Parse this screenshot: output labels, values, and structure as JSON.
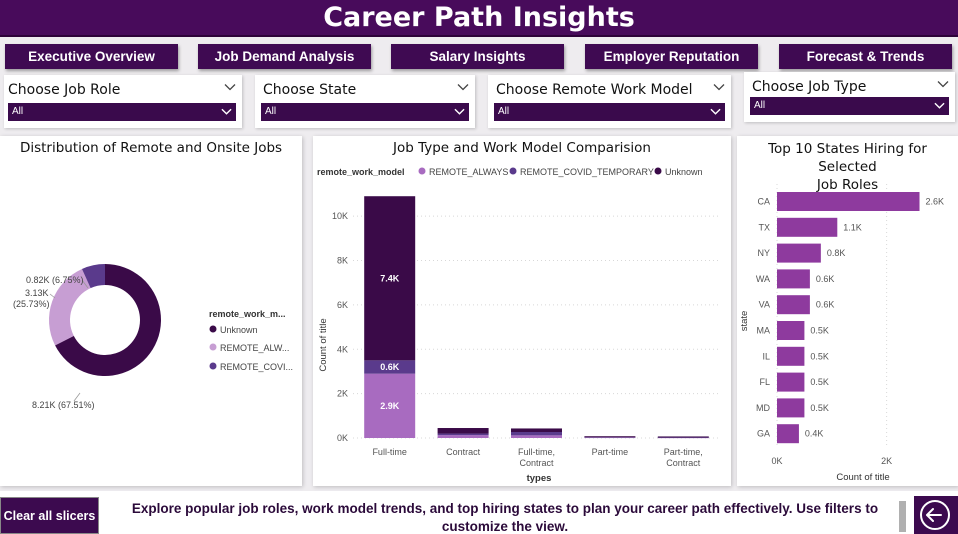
{
  "header": {
    "title": "Career Path Insights"
  },
  "nav": [
    {
      "label": "Executive Overview"
    },
    {
      "label": "Job Demand Analysis"
    },
    {
      "label": "Salary Insights"
    },
    {
      "label": "Employer Reputation"
    },
    {
      "label": "Forecast & Trends"
    }
  ],
  "slicers": [
    {
      "title": "Choose Job Role",
      "value": "All"
    },
    {
      "title": "Choose State",
      "value": "All"
    },
    {
      "title": "Choose Remote Work Model",
      "value": "All"
    },
    {
      "title": "Choose Job Type",
      "value": "All"
    }
  ],
  "donut": {
    "title": "Distribution of Remote and Onsite Jobs",
    "legend_title": "remote_work_m...",
    "legend": [
      {
        "label": "Unknown",
        "color": "#3a0a48"
      },
      {
        "label": "REMOTE_ALW...",
        "color": "#c79ed3"
      },
      {
        "label": "REMOTE_COVI...",
        "color": "#5a3a8c"
      }
    ],
    "labels": {
      "covid": "0.82K (6.75%)",
      "always_1": "3.13K",
      "always_2": "(25.73%)",
      "unknown": "8.21K (67.51%)"
    }
  },
  "stacked": {
    "title": "Job Type and Work Model Comparision",
    "legend_title": "remote_work_model",
    "ylabel": "Count of title",
    "xlabel": "types"
  },
  "hbar": {
    "title_line1": "Top 10 States Hiring for Selected",
    "title_line2": "Job Roles",
    "ylabel": "state",
    "xlabel": "Count of title"
  },
  "footer": {
    "clear_label": "Clear all slicers",
    "text": "Explore popular job roles, work model trends, and top hiring states to plan your career path effectively. Use filters to customize the view."
  },
  "chart_data": [
    {
      "type": "pie",
      "title": "Distribution of Remote and Onsite Jobs",
      "categories": [
        "Unknown",
        "REMOTE_ALWAYS",
        "REMOTE_COVID_TEMPORARY"
      ],
      "values": [
        8210,
        3130,
        820
      ],
      "percent": [
        67.51,
        25.73,
        6.75
      ],
      "colors": [
        "#3a0a48",
        "#c79ed3",
        "#5a3a8c"
      ]
    },
    {
      "type": "bar",
      "title": "Job Type and Work Model Comparision",
      "categories": [
        "Full-time",
        "Contract",
        "Full-time, Contract",
        "Part-time",
        "Part-time, Contract"
      ],
      "series": [
        {
          "name": "REMOTE_ALWAYS",
          "color": "#a86bc0",
          "values": [
            2900,
            130,
            120,
            20,
            15
          ]
        },
        {
          "name": "REMOTE_COVID_TEMPORARY",
          "color": "#5a3a8c",
          "values": [
            600,
            70,
            150,
            15,
            10
          ]
        },
        {
          "name": "Unknown",
          "color": "#3a0a48",
          "values": [
            7400,
            250,
            160,
            45,
            45
          ]
        }
      ],
      "data_labels": {
        "Full-time": [
          "2.9K",
          "0.6K",
          "7.4K"
        ]
      },
      "yticks": [
        "0K",
        "2K",
        "4K",
        "6K",
        "8K",
        "10K"
      ],
      "ylim": [
        0,
        11000
      ],
      "xlabel": "types",
      "ylabel": "Count of title"
    },
    {
      "type": "bar",
      "orientation": "horizontal",
      "title": "Top 10 States Hiring for Selected Job Roles",
      "categories": [
        "CA",
        "TX",
        "NY",
        "WA",
        "VA",
        "MA",
        "IL",
        "FL",
        "MD",
        "GA"
      ],
      "values": [
        2600,
        1100,
        800,
        600,
        600,
        500,
        500,
        500,
        500,
        400
      ],
      "labels": [
        "2.6K",
        "1.1K",
        "0.8K",
        "0.6K",
        "0.6K",
        "0.5K",
        "0.5K",
        "0.5K",
        "0.5K",
        "0.4K"
      ],
      "color": "#8e3a9e",
      "xticks": [
        "0K",
        "2K"
      ],
      "xlim": [
        0,
        2700
      ],
      "xlabel": "Count of title",
      "ylabel": "state"
    }
  ]
}
